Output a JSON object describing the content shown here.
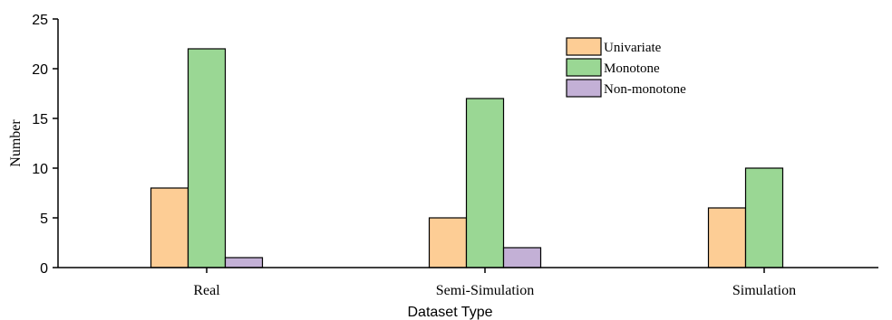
{
  "chart_data": {
    "type": "bar",
    "title": "",
    "xlabel": "Dataset Type",
    "ylabel": "Number",
    "categories": [
      "Real",
      "Semi-Simulation",
      "Simulation"
    ],
    "series": [
      {
        "name": "Univariate",
        "values": [
          8,
          5,
          6
        ],
        "color": "#fdcd95"
      },
      {
        "name": "Monotone",
        "values": [
          22,
          17,
          10
        ],
        "color": "#9ad794"
      },
      {
        "name": "Non-monotone",
        "values": [
          1,
          2,
          0
        ],
        "color": "#c3b0d6"
      }
    ],
    "ylim": [
      0,
      25
    ],
    "yticks": [
      0,
      5,
      10,
      15,
      20,
      25
    ],
    "grid": false,
    "legend_position": "top-right"
  }
}
